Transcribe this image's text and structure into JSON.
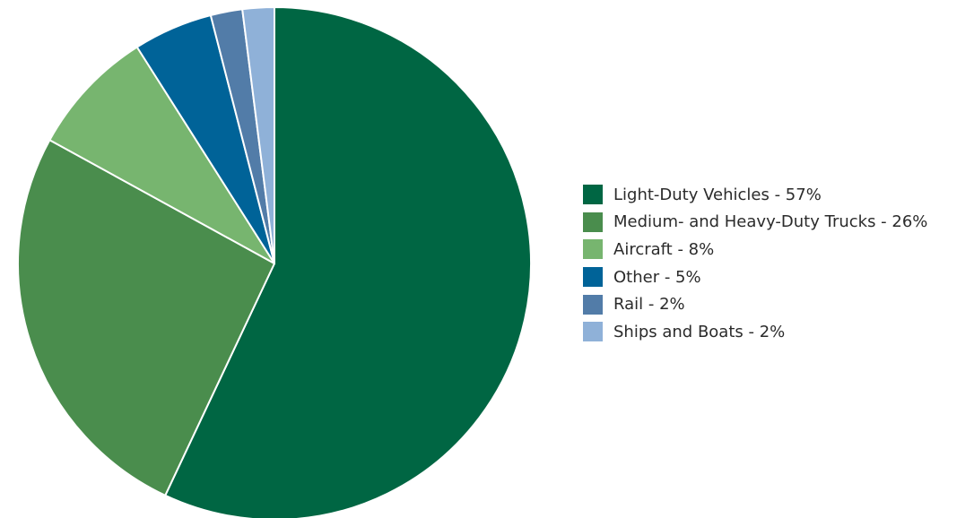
{
  "chart_data": {
    "type": "pie",
    "title": "",
    "start": "top",
    "direction": "clockwise",
    "legend_placement": "right",
    "slices": [
      {
        "label": "Light-Duty Vehicles",
        "value": 57,
        "legend": "Light-Duty Vehicles - 57%",
        "color": "#006643"
      },
      {
        "label": "Medium- and Heavy-Duty Trucks",
        "value": 26,
        "legend": "Medium- and Heavy-Duty Trucks - 26%",
        "color": "#4a8d4d"
      },
      {
        "label": "Aircraft",
        "value": 8,
        "legend": "Aircraft - 8%",
        "color": "#77b56f"
      },
      {
        "label": "Other",
        "value": 5,
        "legend": "Other - 5%",
        "color": "#006398"
      },
      {
        "label": "Rail",
        "value": 2,
        "legend": "Rail - 2%",
        "color": "#527ca8"
      },
      {
        "label": "Ships and Boats",
        "value": 2,
        "legend": "Ships and Boats - 2%",
        "color": "#8fb1d8"
      }
    ]
  }
}
